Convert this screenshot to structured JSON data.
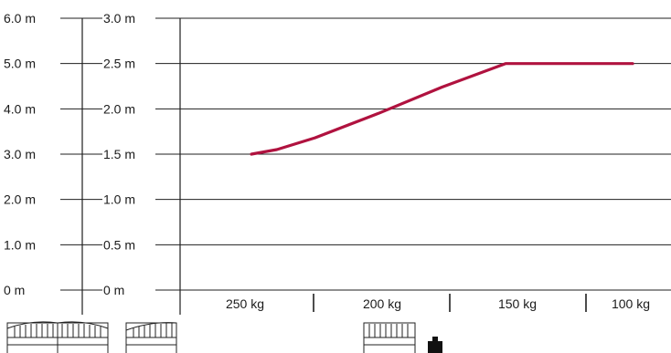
{
  "chart_data": {
    "type": "line",
    "title": "",
    "xlabel": "",
    "ylabel": "",
    "x_categories": [
      "250 kg",
      "200 kg",
      "150 kg",
      "100 kg"
    ],
    "left_axis_ticks": [
      "0 m",
      "1.0 m",
      "2.0 m",
      "3.0 m",
      "4.0 m",
      "5.0 m",
      "6.0 m"
    ],
    "right_axis_ticks": [
      "0 m",
      "0.5 m",
      "1.0 m",
      "1.5 m",
      "2.0 m",
      "2.5 m",
      "3.0 m"
    ],
    "ylim_left": [
      0,
      6
    ],
    "ylim_right": [
      0,
      3
    ],
    "grid": true,
    "series": [
      {
        "color": "#b0123f",
        "points": [
          {
            "x": 250,
            "y": 1.5
          },
          {
            "x": 240,
            "y": 1.55
          },
          {
            "x": 225,
            "y": 1.68
          },
          {
            "x": 200,
            "y": 1.95
          },
          {
            "x": 175,
            "y": 2.24
          },
          {
            "x": 150,
            "y": 2.5
          },
          {
            "x": 100,
            "y": 2.5
          }
        ]
      }
    ]
  },
  "icons": {
    "double_gate": "double-swing-gate-icon",
    "single_gate": "single-swing-gate-icon",
    "sliding_gate": "sliding-gate-icon",
    "weight": "weight-icon"
  }
}
